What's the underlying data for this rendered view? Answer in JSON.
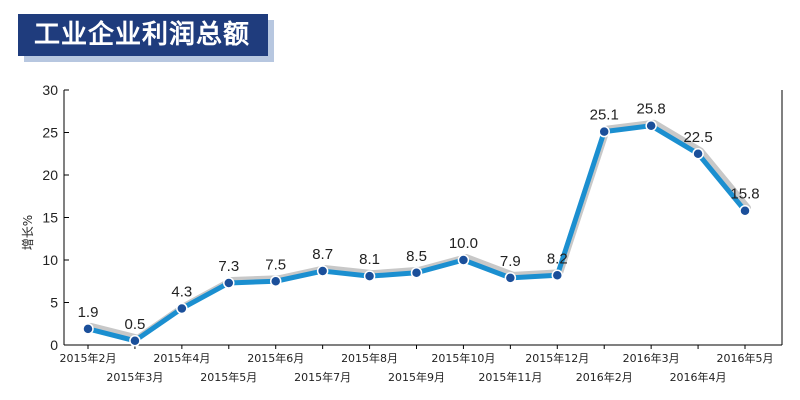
{
  "title": "工业企业利润总额",
  "colors": {
    "title_bg": "#1f3c7d",
    "line": "#1b8fd0",
    "shadow": "#c8c8c8",
    "marker": "#1b4f9a"
  },
  "chart_data": {
    "type": "line",
    "title": "工业企业利润总额",
    "ylabel": "增长%",
    "xlabel": "",
    "ylim": [
      0,
      30
    ],
    "yticks": [
      0,
      5,
      10,
      15,
      20,
      25,
      30
    ],
    "grid": false,
    "categories": [
      "2015年2月",
      "2015年3月",
      "2015年4月",
      "2015年5月",
      "2015年6月",
      "2015年7月",
      "2015年8月",
      "2015年9月",
      "2015年10月",
      "2015年11月",
      "2015年12月",
      "2016年2月",
      "2016年3月",
      "2016年4月",
      "2016年5月"
    ],
    "series": [
      {
        "values": [
          1.9,
          0.5,
          4.3,
          7.3,
          7.5,
          8.7,
          8.1,
          8.5,
          10.0,
          7.9,
          8.2,
          25.1,
          25.8,
          22.5,
          15.8
        ]
      }
    ],
    "data_labels": [
      "1.9",
      "0.5",
      "4.3",
      "7.3",
      "7.5",
      "8.7",
      "8.1",
      "8.5",
      "10.0",
      "7.9",
      "8.2",
      "25.1",
      "25.8",
      "22.5",
      "15.8"
    ]
  }
}
